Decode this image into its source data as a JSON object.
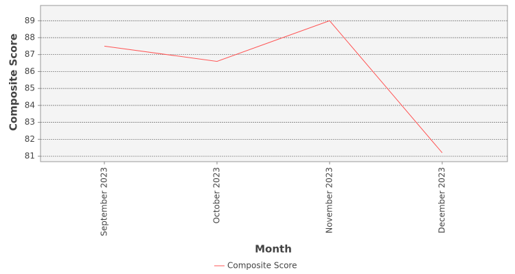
{
  "chart_data": {
    "type": "line",
    "categories": [
      "September 2023",
      "October 2023",
      "November 2023",
      "December 2023"
    ],
    "series": [
      {
        "name": "Composite Score",
        "color": "#ff5555",
        "values": [
          87.5,
          86.6,
          89.0,
          81.2
        ]
      }
    ],
    "x_label": "Month",
    "y_label": "Composite Score",
    "ylim": [
      80.8,
      89.9
    ],
    "yticks": [
      81,
      82,
      83,
      84,
      85,
      86,
      87,
      88,
      89
    ],
    "grid": true
  }
}
